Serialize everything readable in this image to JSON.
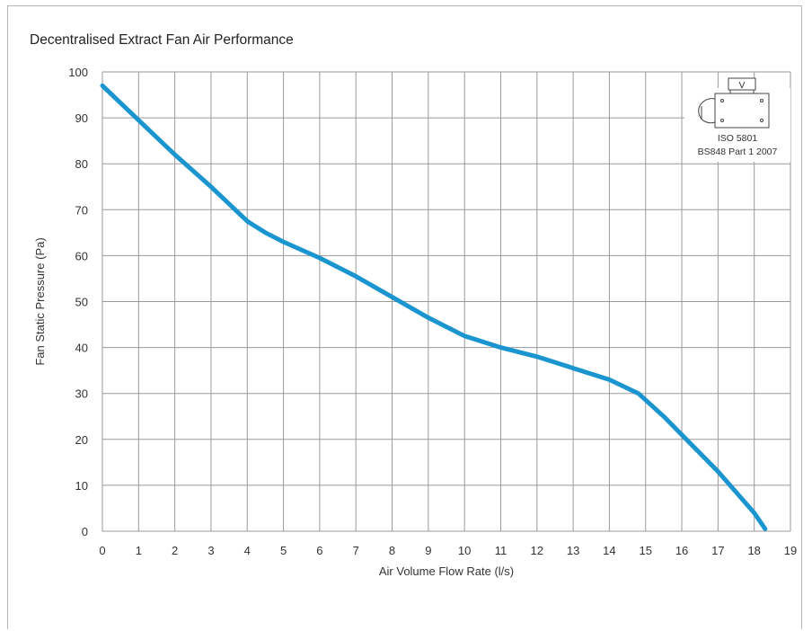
{
  "chart_data": {
    "type": "line",
    "title": "Decentralised Extract Fan Air Performance",
    "xlabel": "Air Volume Flow Rate (l/s)",
    "ylabel": "Fan Static Pressure (Pa)",
    "xlim": [
      0,
      19
    ],
    "ylim": [
      0,
      100
    ],
    "x_ticks": [
      0,
      1,
      2,
      3,
      4,
      5,
      6,
      7,
      8,
      9,
      10,
      11,
      12,
      13,
      14,
      15,
      16,
      17,
      18,
      19
    ],
    "y_ticks": [
      0,
      10,
      20,
      30,
      40,
      50,
      60,
      70,
      80,
      90,
      100
    ],
    "grid": true,
    "color": "#1a95cf",
    "series": [
      {
        "x": [
          0,
          1,
          2,
          3,
          4,
          4.5,
          5,
          6,
          7,
          8,
          9,
          10,
          11,
          12,
          13,
          14,
          14.8,
          15.5,
          16,
          17,
          18,
          18.3
        ],
        "y": [
          97,
          89.5,
          82,
          75,
          67.5,
          65,
          63,
          59.5,
          55.5,
          51,
          46.5,
          42.5,
          40,
          38,
          35.5,
          33,
          30,
          25,
          21,
          13,
          4,
          0.5
        ]
      }
    ],
    "annotation": {
      "icon": "fan-test-rig-icon",
      "icon_label": "V",
      "lines": [
        "ISO 5801",
        "BS848 Part 1 2007"
      ]
    }
  }
}
